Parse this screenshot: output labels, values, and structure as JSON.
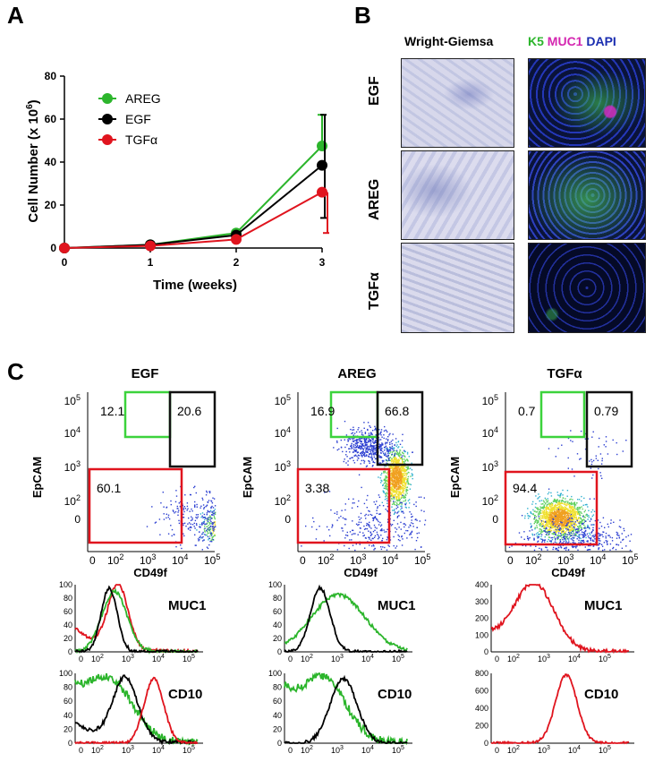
{
  "panels": {
    "a": "A",
    "b": "B",
    "c": "C"
  },
  "panelA": {
    "legend": [
      {
        "name": "AREG",
        "color": "#2cb52c"
      },
      {
        "name": "EGF",
        "color": "#000000"
      },
      {
        "name": "TGFα",
        "color": "#e0141e"
      }
    ]
  },
  "chart_data": [
    {
      "type": "line",
      "xlabel": "Time (weeks)",
      "ylabel": "Cell Number (x 10",
      "ylabel_sup": "6",
      "ylabel_close": ")",
      "x": [
        0,
        1,
        2,
        3
      ],
      "xticks": [
        "0",
        "1",
        "2",
        "3"
      ],
      "yticks": [
        "0",
        "20",
        "40",
        "60",
        "80"
      ],
      "xlim": [
        0,
        3
      ],
      "ylim": [
        0,
        80
      ],
      "series": [
        {
          "name": "AREG",
          "color": "#2cb52c",
          "values": [
            0,
            1.5,
            7,
            47.5
          ],
          "err_upper": [
            0,
            0,
            0,
            62
          ]
        },
        {
          "name": "EGF",
          "color": "#000000",
          "values": [
            0,
            1.5,
            6,
            38.5
          ],
          "err_upper": [
            0,
            0,
            0,
            62
          ],
          "err_lower": [
            0,
            0,
            0,
            14
          ]
        },
        {
          "name": "TGFα",
          "color": "#e0141e",
          "values": [
            0,
            1,
            4,
            26
          ],
          "err_lower": [
            0,
            0,
            0,
            7
          ]
        }
      ]
    }
  ],
  "panelB": {
    "col_wright": "Wright-Giemsa",
    "col_k5": "K5",
    "col_muc1": "MUC1",
    "col_dapi": "DAPI",
    "rows": [
      "EGF",
      "AREG",
      "TGFα"
    ]
  },
  "panelC": {
    "columns": [
      {
        "title": "EGF",
        "gate_green": "12.1",
        "gate_black": "20.6",
        "gate_red": "60.1"
      },
      {
        "title": "AREG",
        "gate_green": "16.9",
        "gate_black": "66.8",
        "gate_red": "3.38"
      },
      {
        "title": "TGFα",
        "gate_green": "0.7",
        "gate_black": "0.79",
        "gate_red": "94.4"
      }
    ],
    "ylabel": "EpCAM",
    "xlabel": "CD49f",
    "hist_muc1": "MUC1",
    "hist_cd10": "CD10",
    "hist_yticks_pct": [
      "0",
      "20",
      "40",
      "60",
      "80",
      "100"
    ],
    "hist_yticks_tgfa_muc1": [
      "0",
      "100",
      "200",
      "300",
      "400"
    ],
    "hist_yticks_tgfa_cd10": [
      "0",
      "200",
      "400",
      "600",
      "800"
    ]
  }
}
